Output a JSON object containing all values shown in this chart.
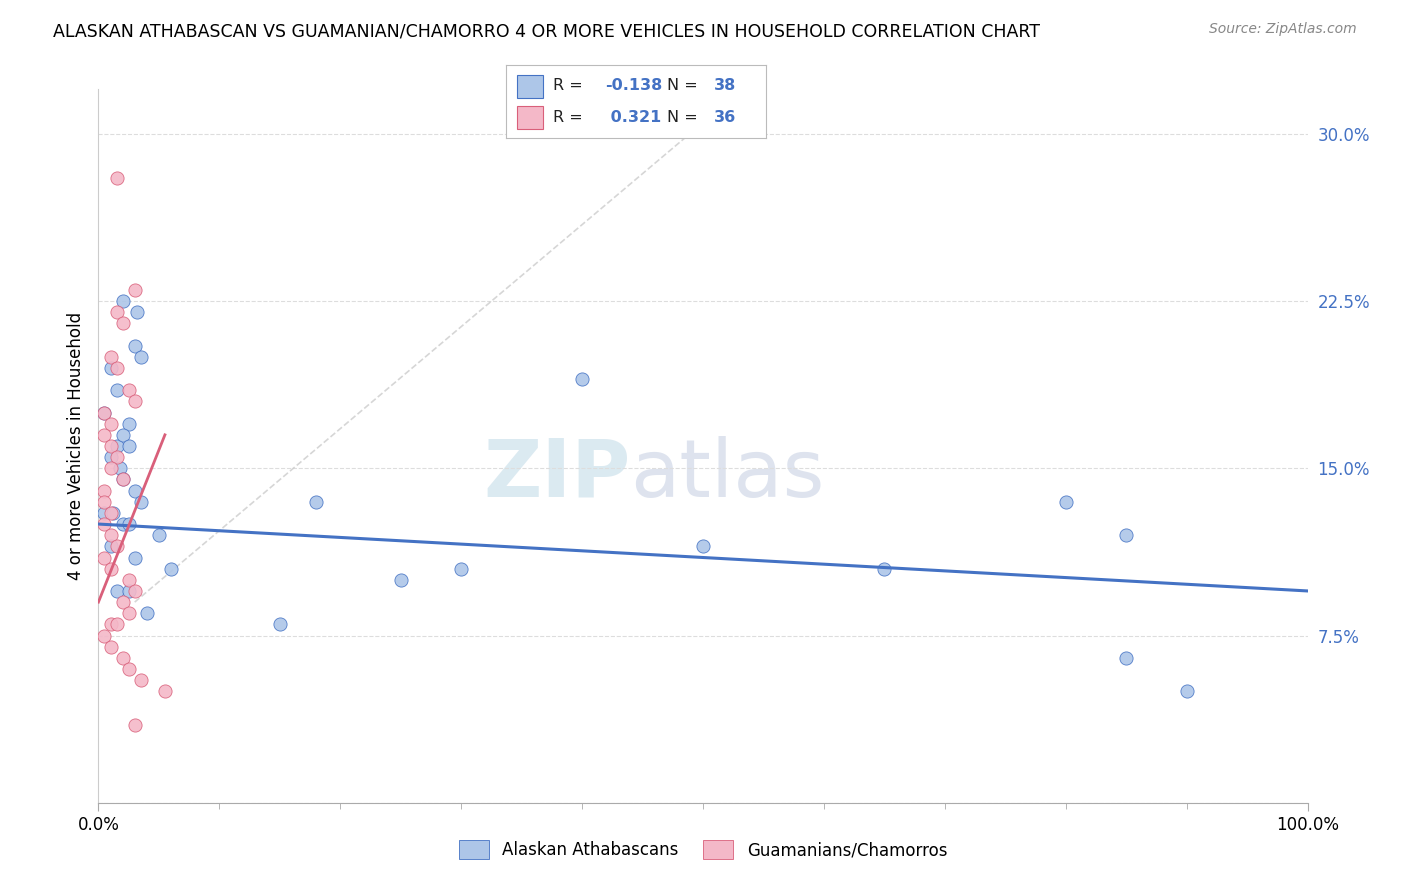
{
  "title": "ALASKAN ATHABASCAN VS GUAMANIAN/CHAMORRO 4 OR MORE VEHICLES IN HOUSEHOLD CORRELATION CHART",
  "source": "Source: ZipAtlas.com",
  "ylabel": "4 or more Vehicles in Household",
  "xlim": [
    0,
    100
  ],
  "ylim": [
    0,
    32
  ],
  "ytick_vals": [
    0,
    7.5,
    15.0,
    22.5,
    30.0
  ],
  "ytick_labels": [
    "",
    "7.5%",
    "15.0%",
    "22.5%",
    "30.0%"
  ],
  "xtick_vals": [
    0,
    100
  ],
  "xtick_labels": [
    "0.0%",
    "100.0%"
  ],
  "legend1_R": "-0.138",
  "legend1_N": "38",
  "legend2_R": "0.321",
  "legend2_N": "36",
  "blue_color": "#adc6e8",
  "pink_color": "#f4b8c8",
  "line_blue": "#4472c4",
  "line_pink": "#d95f7a",
  "blue_trend": [
    0,
    100,
    12.5,
    9.5
  ],
  "pink_trend": [
    0,
    5.5,
    9.0,
    16.5
  ],
  "blue_dots": [
    [
      1.5,
      18.5
    ],
    [
      3.0,
      20.5
    ],
    [
      3.5,
      20.0
    ],
    [
      2.0,
      22.5
    ],
    [
      3.2,
      22.0
    ],
    [
      1.0,
      19.5
    ],
    [
      2.5,
      17.0
    ],
    [
      0.5,
      17.5
    ],
    [
      1.5,
      16.0
    ],
    [
      2.0,
      16.5
    ],
    [
      2.5,
      16.0
    ],
    [
      1.0,
      15.5
    ],
    [
      1.8,
      15.0
    ],
    [
      2.0,
      14.5
    ],
    [
      3.0,
      14.0
    ],
    [
      3.5,
      13.5
    ],
    [
      0.5,
      13.0
    ],
    [
      1.2,
      13.0
    ],
    [
      2.0,
      12.5
    ],
    [
      2.5,
      12.5
    ],
    [
      5.0,
      12.0
    ],
    [
      1.0,
      11.5
    ],
    [
      3.0,
      11.0
    ],
    [
      6.0,
      10.5
    ],
    [
      40.0,
      19.0
    ],
    [
      18.0,
      13.5
    ],
    [
      80.0,
      13.5
    ],
    [
      85.0,
      12.0
    ],
    [
      50.0,
      11.5
    ],
    [
      65.0,
      10.5
    ],
    [
      30.0,
      10.5
    ],
    [
      25.0,
      10.0
    ],
    [
      1.5,
      9.5
    ],
    [
      2.5,
      9.5
    ],
    [
      4.0,
      8.5
    ],
    [
      15.0,
      8.0
    ],
    [
      85.0,
      6.5
    ],
    [
      90.0,
      5.0
    ]
  ],
  "pink_dots": [
    [
      1.5,
      28.0
    ],
    [
      3.0,
      23.0
    ],
    [
      1.5,
      22.0
    ],
    [
      2.0,
      21.5
    ],
    [
      1.0,
      20.0
    ],
    [
      1.5,
      19.5
    ],
    [
      2.5,
      18.5
    ],
    [
      3.0,
      18.0
    ],
    [
      0.5,
      17.5
    ],
    [
      1.0,
      17.0
    ],
    [
      0.5,
      16.5
    ],
    [
      1.0,
      16.0
    ],
    [
      1.5,
      15.5
    ],
    [
      1.0,
      15.0
    ],
    [
      2.0,
      14.5
    ],
    [
      0.5,
      14.0
    ],
    [
      0.5,
      13.5
    ],
    [
      1.0,
      13.0
    ],
    [
      0.5,
      12.5
    ],
    [
      1.0,
      12.0
    ],
    [
      1.5,
      11.5
    ],
    [
      0.5,
      11.0
    ],
    [
      1.0,
      10.5
    ],
    [
      2.5,
      10.0
    ],
    [
      3.0,
      9.5
    ],
    [
      2.0,
      9.0
    ],
    [
      2.5,
      8.5
    ],
    [
      1.0,
      8.0
    ],
    [
      1.5,
      8.0
    ],
    [
      0.5,
      7.5
    ],
    [
      1.0,
      7.0
    ],
    [
      2.0,
      6.5
    ],
    [
      2.5,
      6.0
    ],
    [
      3.5,
      5.5
    ],
    [
      5.5,
      5.0
    ],
    [
      3.0,
      3.5
    ]
  ]
}
